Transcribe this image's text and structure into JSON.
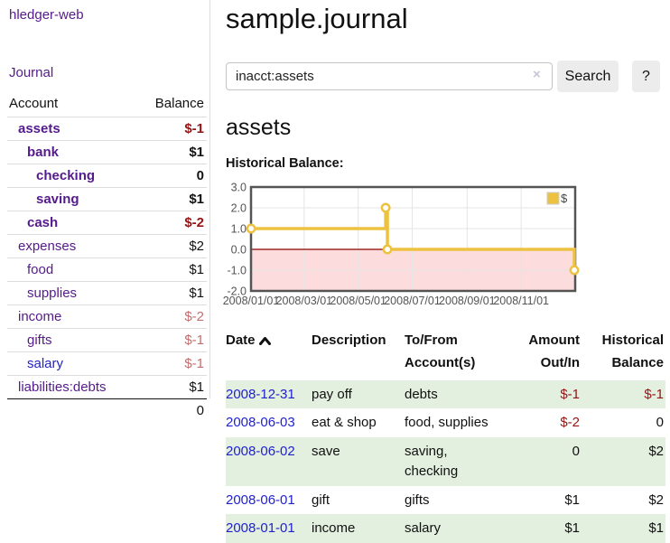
{
  "colors": {
    "link_purple": "#551a8b",
    "link_blue": "#2222cc",
    "negative_strong": "#941414",
    "negative_soft": "#c46e6e",
    "row_stripe_green": "#e3efdf",
    "button_gray": "#ececec",
    "series_gold": "#edc240"
  },
  "sidebar": {
    "app_title": "hledger-web",
    "journal_label": "Journal",
    "accounts_table": {
      "headers": {
        "account": "Account",
        "balance": "Balance"
      },
      "rows": [
        {
          "name": "assets",
          "depth": 0,
          "bold": true,
          "link_color": "purple",
          "balance": "$-1",
          "balance_class": "neg"
        },
        {
          "name": "bank",
          "depth": 1,
          "bold": true,
          "link_color": "purple",
          "balance": "$1",
          "balance_class": ""
        },
        {
          "name": "checking",
          "depth": 2,
          "bold": true,
          "link_color": "purple",
          "balance": "0",
          "balance_class": ""
        },
        {
          "name": "saving",
          "depth": 2,
          "bold": true,
          "link_color": "purple",
          "balance": "$1",
          "balance_class": ""
        },
        {
          "name": "cash",
          "depth": 1,
          "bold": true,
          "link_color": "purple",
          "balance": "$-2",
          "balance_class": "neg"
        },
        {
          "name": "expenses",
          "depth": 0,
          "bold": false,
          "link_color": "purple",
          "balance": "$2",
          "balance_class": ""
        },
        {
          "name": "food",
          "depth": 1,
          "bold": false,
          "link_color": "purple",
          "balance": "$1",
          "balance_class": ""
        },
        {
          "name": "supplies",
          "depth": 1,
          "bold": false,
          "link_color": "purple",
          "balance": "$1",
          "balance_class": ""
        },
        {
          "name": "income",
          "depth": 0,
          "bold": false,
          "link_color": "purple",
          "balance": "$-2",
          "balance_class": "negsoft"
        },
        {
          "name": "gifts",
          "depth": 1,
          "bold": false,
          "link_color": "purple",
          "balance": "$-1",
          "balance_class": "negsoft"
        },
        {
          "name": "salary",
          "depth": 1,
          "bold": false,
          "link_color": "blue",
          "balance": "$-1",
          "balance_class": "negsoft"
        },
        {
          "name": "liabilities:debts",
          "depth": 0,
          "bold": false,
          "link_color": "purple",
          "balance": "$1",
          "balance_class": ""
        }
      ],
      "total": "0"
    }
  },
  "main": {
    "title": "sample.journal",
    "search": {
      "value": "inacct:assets",
      "clear_icon": "×",
      "button_label": "Search",
      "help_label": "?"
    },
    "account_heading": "assets",
    "chart_label": "Historical Balance:",
    "register_table": {
      "headers": {
        "date": "Date",
        "description": "Description",
        "accounts": "To/From Account(s)",
        "amount": "Amount Out/In",
        "balance": "Historical Balance"
      },
      "rows": [
        {
          "date": "2008-12-31",
          "description": "pay off",
          "accounts": "debts",
          "amount": "$-1",
          "amount_class": "neg",
          "balance": "$-1",
          "balance_class": "neg",
          "striped": true
        },
        {
          "date": "2008-06-03",
          "description": "eat & shop",
          "accounts": "food, supplies",
          "amount": "$-2",
          "amount_class": "neg",
          "balance": "0",
          "balance_class": "",
          "striped": false
        },
        {
          "date": "2008-06-02",
          "description": "save",
          "accounts": "saving, checking",
          "amount": "0",
          "amount_class": "",
          "balance": "$2",
          "balance_class": "",
          "striped": true
        },
        {
          "date": "2008-06-01",
          "description": "gift",
          "accounts": "gifts",
          "amount": "$1",
          "amount_class": "",
          "balance": "$2",
          "balance_class": "",
          "striped": false
        },
        {
          "date": "2008-01-01",
          "description": "income",
          "accounts": "salary",
          "amount": "$1",
          "amount_class": "",
          "balance": "$1",
          "balance_class": "",
          "striped": true
        }
      ]
    }
  },
  "chart_data": {
    "type": "line",
    "title": "Historical Balance:",
    "style": "steps",
    "series": [
      {
        "name": "$",
        "color": "#edc240",
        "points": [
          {
            "date": "2008-01-01",
            "value": 1
          },
          {
            "date": "2008-06-01",
            "value": 2
          },
          {
            "date": "2008-06-03",
            "value": 0
          },
          {
            "date": "2008-12-31",
            "value": -1
          }
        ]
      }
    ],
    "x_range": [
      "2008-01-01",
      "2009-01-01"
    ],
    "x_ticks": [
      "2008/01/01",
      "2008/03/01",
      "2008/05/01",
      "2008/07/01",
      "2008/09/01",
      "2008/11/01"
    ],
    "y_ticks": [
      "3.0",
      "2.0",
      "1.0",
      "0.0",
      "-1.0",
      "-2.0"
    ],
    "ylim": [
      -2,
      3
    ],
    "grid": true,
    "grid_color": "#e5e5e5",
    "plot_border_color": "#545454",
    "axis_text_color": "#545454",
    "negative_region_color": "#fcdcdc",
    "zero_line_color": "#8b0000",
    "legend": {
      "label": "$",
      "position": "top-right"
    }
  }
}
